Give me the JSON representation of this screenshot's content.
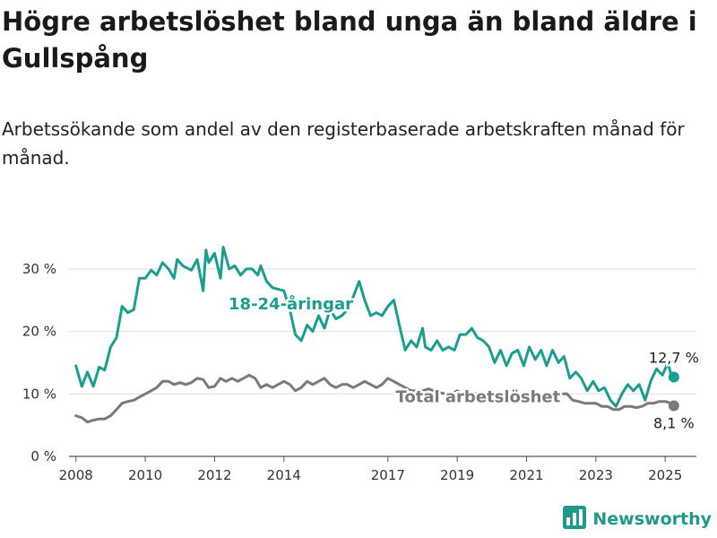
{
  "title": "Högre arbetslöshet bland unga än bland äldre i Gullspång",
  "subtitle": "Arbetssökande som andel av den registerbaserade arbetskraften månad för månad.",
  "brand": {
    "name": "Newsworthy",
    "icon": "bar-chart-logo-icon"
  },
  "colors": {
    "youth": "#1a9e8f",
    "total": "#7a7a7a",
    "grid": "#dddddd",
    "brand": "#1e9a8c"
  },
  "chart_data": {
    "type": "line",
    "title": "Högre arbetslöshet bland unga än bland äldre i Gullspång",
    "subtitle": "Arbetssökande som andel av den registerbaserade arbetskraften månad för månad.",
    "x_unit": "year",
    "ylim": [
      0,
      35
    ],
    "xlim": [
      2007.8,
      2025.9
    ],
    "yticks": [
      0,
      10,
      20,
      30
    ],
    "ytick_labels": [
      "0 %",
      "10 %",
      "20 %",
      "30 %"
    ],
    "xticks": [
      2008,
      2010,
      2012,
      2014,
      2017,
      2019,
      2021,
      2023,
      2025
    ],
    "xtick_labels": [
      "2008",
      "2010",
      "2012",
      "2014",
      "2017",
      "2019",
      "2021",
      "2023",
      "2025"
    ],
    "grid": "horizontal",
    "series": [
      {
        "name": "18-24-åringar",
        "color": "#1a9e8f",
        "end_label": "12,7 %",
        "points": [
          [
            2008.0,
            14.5
          ],
          [
            2008.17,
            11.2
          ],
          [
            2008.33,
            13.5
          ],
          [
            2008.5,
            11.2
          ],
          [
            2008.67,
            14.3
          ],
          [
            2008.83,
            13.8
          ],
          [
            2009.0,
            17.5
          ],
          [
            2009.17,
            19.0
          ],
          [
            2009.33,
            24.0
          ],
          [
            2009.5,
            23.0
          ],
          [
            2009.67,
            23.5
          ],
          [
            2009.83,
            28.5
          ],
          [
            2010.0,
            28.5
          ],
          [
            2010.17,
            29.8
          ],
          [
            2010.33,
            29.0
          ],
          [
            2010.5,
            31.0
          ],
          [
            2010.67,
            30.0
          ],
          [
            2010.83,
            28.5
          ],
          [
            2010.92,
            31.5
          ],
          [
            2011.08,
            30.5
          ],
          [
            2011.33,
            29.8
          ],
          [
            2011.5,
            31.5
          ],
          [
            2011.67,
            26.5
          ],
          [
            2011.75,
            33.0
          ],
          [
            2011.83,
            31.0
          ],
          [
            2012.0,
            32.5
          ],
          [
            2012.17,
            28.5
          ],
          [
            2012.25,
            33.5
          ],
          [
            2012.42,
            30.0
          ],
          [
            2012.58,
            30.5
          ],
          [
            2012.75,
            29.0
          ],
          [
            2012.92,
            30.0
          ],
          [
            2013.08,
            30.0
          ],
          [
            2013.25,
            29.0
          ],
          [
            2013.33,
            30.5
          ],
          [
            2013.5,
            28.0
          ],
          [
            2013.67,
            27.0
          ],
          [
            2014.0,
            26.5
          ],
          [
            2014.17,
            23.5
          ],
          [
            2014.33,
            19.5
          ],
          [
            2014.5,
            18.5
          ],
          [
            2014.67,
            21.0
          ],
          [
            2014.83,
            20.0
          ],
          [
            2015.0,
            22.5
          ],
          [
            2015.17,
            20.5
          ],
          [
            2015.33,
            23.5
          ],
          [
            2015.5,
            22.0
          ],
          [
            2015.67,
            22.5
          ],
          [
            2015.83,
            23.5
          ],
          [
            2016.0,
            25.5
          ],
          [
            2016.17,
            28.0
          ],
          [
            2016.33,
            25.0
          ],
          [
            2016.5,
            22.5
          ],
          [
            2016.67,
            23.0
          ],
          [
            2016.83,
            22.5
          ],
          [
            2017.0,
            24.0
          ],
          [
            2017.17,
            25.0
          ],
          [
            2017.33,
            21.0
          ],
          [
            2017.5,
            17.0
          ],
          [
            2017.67,
            18.5
          ],
          [
            2017.83,
            17.5
          ],
          [
            2018.0,
            20.5
          ],
          [
            2018.08,
            17.5
          ],
          [
            2018.25,
            17.0
          ],
          [
            2018.42,
            18.5
          ],
          [
            2018.58,
            17.0
          ],
          [
            2018.75,
            17.5
          ],
          [
            2018.92,
            17.0
          ],
          [
            2019.08,
            19.5
          ],
          [
            2019.25,
            19.5
          ],
          [
            2019.42,
            20.5
          ],
          [
            2019.58,
            19.0
          ],
          [
            2019.75,
            18.5
          ],
          [
            2019.92,
            17.5
          ],
          [
            2020.08,
            15.0
          ],
          [
            2020.25,
            17.0
          ],
          [
            2020.42,
            14.5
          ],
          [
            2020.58,
            16.5
          ],
          [
            2020.75,
            17.0
          ],
          [
            2020.92,
            14.5
          ],
          [
            2021.08,
            17.5
          ],
          [
            2021.25,
            15.5
          ],
          [
            2021.42,
            17.0
          ],
          [
            2021.58,
            14.5
          ],
          [
            2021.75,
            17.0
          ],
          [
            2021.92,
            15.0
          ],
          [
            2022.08,
            16.0
          ],
          [
            2022.25,
            12.5
          ],
          [
            2022.42,
            13.5
          ],
          [
            2022.58,
            12.5
          ],
          [
            2022.75,
            10.5
          ],
          [
            2022.92,
            12.0
          ],
          [
            2023.08,
            10.5
          ],
          [
            2023.25,
            11.0
          ],
          [
            2023.42,
            9.0
          ],
          [
            2023.58,
            8.0
          ],
          [
            2023.75,
            10.0
          ],
          [
            2023.92,
            11.5
          ],
          [
            2024.08,
            10.5
          ],
          [
            2024.25,
            11.5
          ],
          [
            2024.42,
            9.0
          ],
          [
            2024.58,
            12.0
          ],
          [
            2024.75,
            14.0
          ],
          [
            2024.92,
            13.0
          ],
          [
            2025.08,
            15.0
          ],
          [
            2025.17,
            13.0
          ],
          [
            2025.25,
            12.7
          ]
        ]
      },
      {
        "name": "Total arbetslöshet",
        "color": "#7a7a7a",
        "end_label": "8,1 %",
        "points": [
          [
            2008.0,
            6.5
          ],
          [
            2008.17,
            6.2
          ],
          [
            2008.33,
            5.5
          ],
          [
            2008.5,
            5.8
          ],
          [
            2008.67,
            6.0
          ],
          [
            2008.83,
            6.0
          ],
          [
            2009.0,
            6.5
          ],
          [
            2009.17,
            7.5
          ],
          [
            2009.33,
            8.5
          ],
          [
            2009.5,
            8.8
          ],
          [
            2009.67,
            9.0
          ],
          [
            2009.83,
            9.5
          ],
          [
            2010.0,
            10.0
          ],
          [
            2010.17,
            10.5
          ],
          [
            2010.33,
            11.0
          ],
          [
            2010.5,
            12.0
          ],
          [
            2010.67,
            12.0
          ],
          [
            2010.83,
            11.5
          ],
          [
            2011.0,
            11.8
          ],
          [
            2011.17,
            11.5
          ],
          [
            2011.33,
            11.8
          ],
          [
            2011.5,
            12.5
          ],
          [
            2011.67,
            12.3
          ],
          [
            2011.83,
            11.0
          ],
          [
            2012.0,
            11.2
          ],
          [
            2012.17,
            12.5
          ],
          [
            2012.33,
            12.0
          ],
          [
            2012.5,
            12.5
          ],
          [
            2012.67,
            12.0
          ],
          [
            2012.83,
            12.5
          ],
          [
            2013.0,
            13.0
          ],
          [
            2013.17,
            12.5
          ],
          [
            2013.33,
            11.0
          ],
          [
            2013.5,
            11.5
          ],
          [
            2013.67,
            11.0
          ],
          [
            2013.83,
            11.5
          ],
          [
            2014.0,
            12.0
          ],
          [
            2014.17,
            11.5
          ],
          [
            2014.33,
            10.5
          ],
          [
            2014.5,
            11.0
          ],
          [
            2014.67,
            12.0
          ],
          [
            2014.83,
            11.5
          ],
          [
            2015.0,
            12.0
          ],
          [
            2015.17,
            12.5
          ],
          [
            2015.33,
            11.5
          ],
          [
            2015.5,
            11.0
          ],
          [
            2015.67,
            11.5
          ],
          [
            2015.83,
            11.5
          ],
          [
            2016.0,
            11.0
          ],
          [
            2016.17,
            11.5
          ],
          [
            2016.33,
            12.0
          ],
          [
            2016.5,
            11.5
          ],
          [
            2016.67,
            11.0
          ],
          [
            2016.83,
            11.5
          ],
          [
            2017.0,
            12.5
          ],
          [
            2017.17,
            12.0
          ],
          [
            2017.33,
            11.5
          ],
          [
            2017.5,
            11.0
          ],
          [
            2017.67,
            10.5
          ],
          [
            2017.83,
            10.5
          ],
          [
            2018.0,
            10.5
          ],
          [
            2018.17,
            10.8
          ],
          [
            2018.33,
            10.5
          ],
          [
            2018.5,
            10.2
          ],
          [
            2018.67,
            10.0
          ],
          [
            2018.83,
            10.0
          ],
          [
            2019.0,
            10.5
          ],
          [
            2019.17,
            10.0
          ],
          [
            2019.33,
            9.8
          ],
          [
            2019.5,
            10.0
          ],
          [
            2019.67,
            10.2
          ],
          [
            2019.83,
            10.0
          ],
          [
            2020.0,
            10.2
          ],
          [
            2020.17,
            10.0
          ],
          [
            2020.33,
            10.0
          ],
          [
            2020.5,
            10.0
          ],
          [
            2020.67,
            9.8
          ],
          [
            2020.83,
            10.0
          ],
          [
            2021.0,
            10.0
          ],
          [
            2021.17,
            10.2
          ],
          [
            2021.33,
            10.0
          ],
          [
            2021.5,
            9.8
          ],
          [
            2021.67,
            10.0
          ],
          [
            2021.83,
            9.8
          ],
          [
            2022.0,
            10.0
          ],
          [
            2022.17,
            10.0
          ],
          [
            2022.33,
            9.0
          ],
          [
            2022.5,
            8.8
          ],
          [
            2022.67,
            8.5
          ],
          [
            2022.83,
            8.5
          ],
          [
            2023.0,
            8.5
          ],
          [
            2023.17,
            8.0
          ],
          [
            2023.33,
            8.0
          ],
          [
            2023.5,
            7.5
          ],
          [
            2023.67,
            7.5
          ],
          [
            2023.83,
            8.0
          ],
          [
            2024.0,
            8.0
          ],
          [
            2024.17,
            7.8
          ],
          [
            2024.33,
            8.0
          ],
          [
            2024.5,
            8.5
          ],
          [
            2024.67,
            8.5
          ],
          [
            2024.83,
            8.8
          ],
          [
            2025.0,
            8.8
          ],
          [
            2025.17,
            8.5
          ],
          [
            2025.25,
            8.1
          ]
        ]
      }
    ]
  }
}
